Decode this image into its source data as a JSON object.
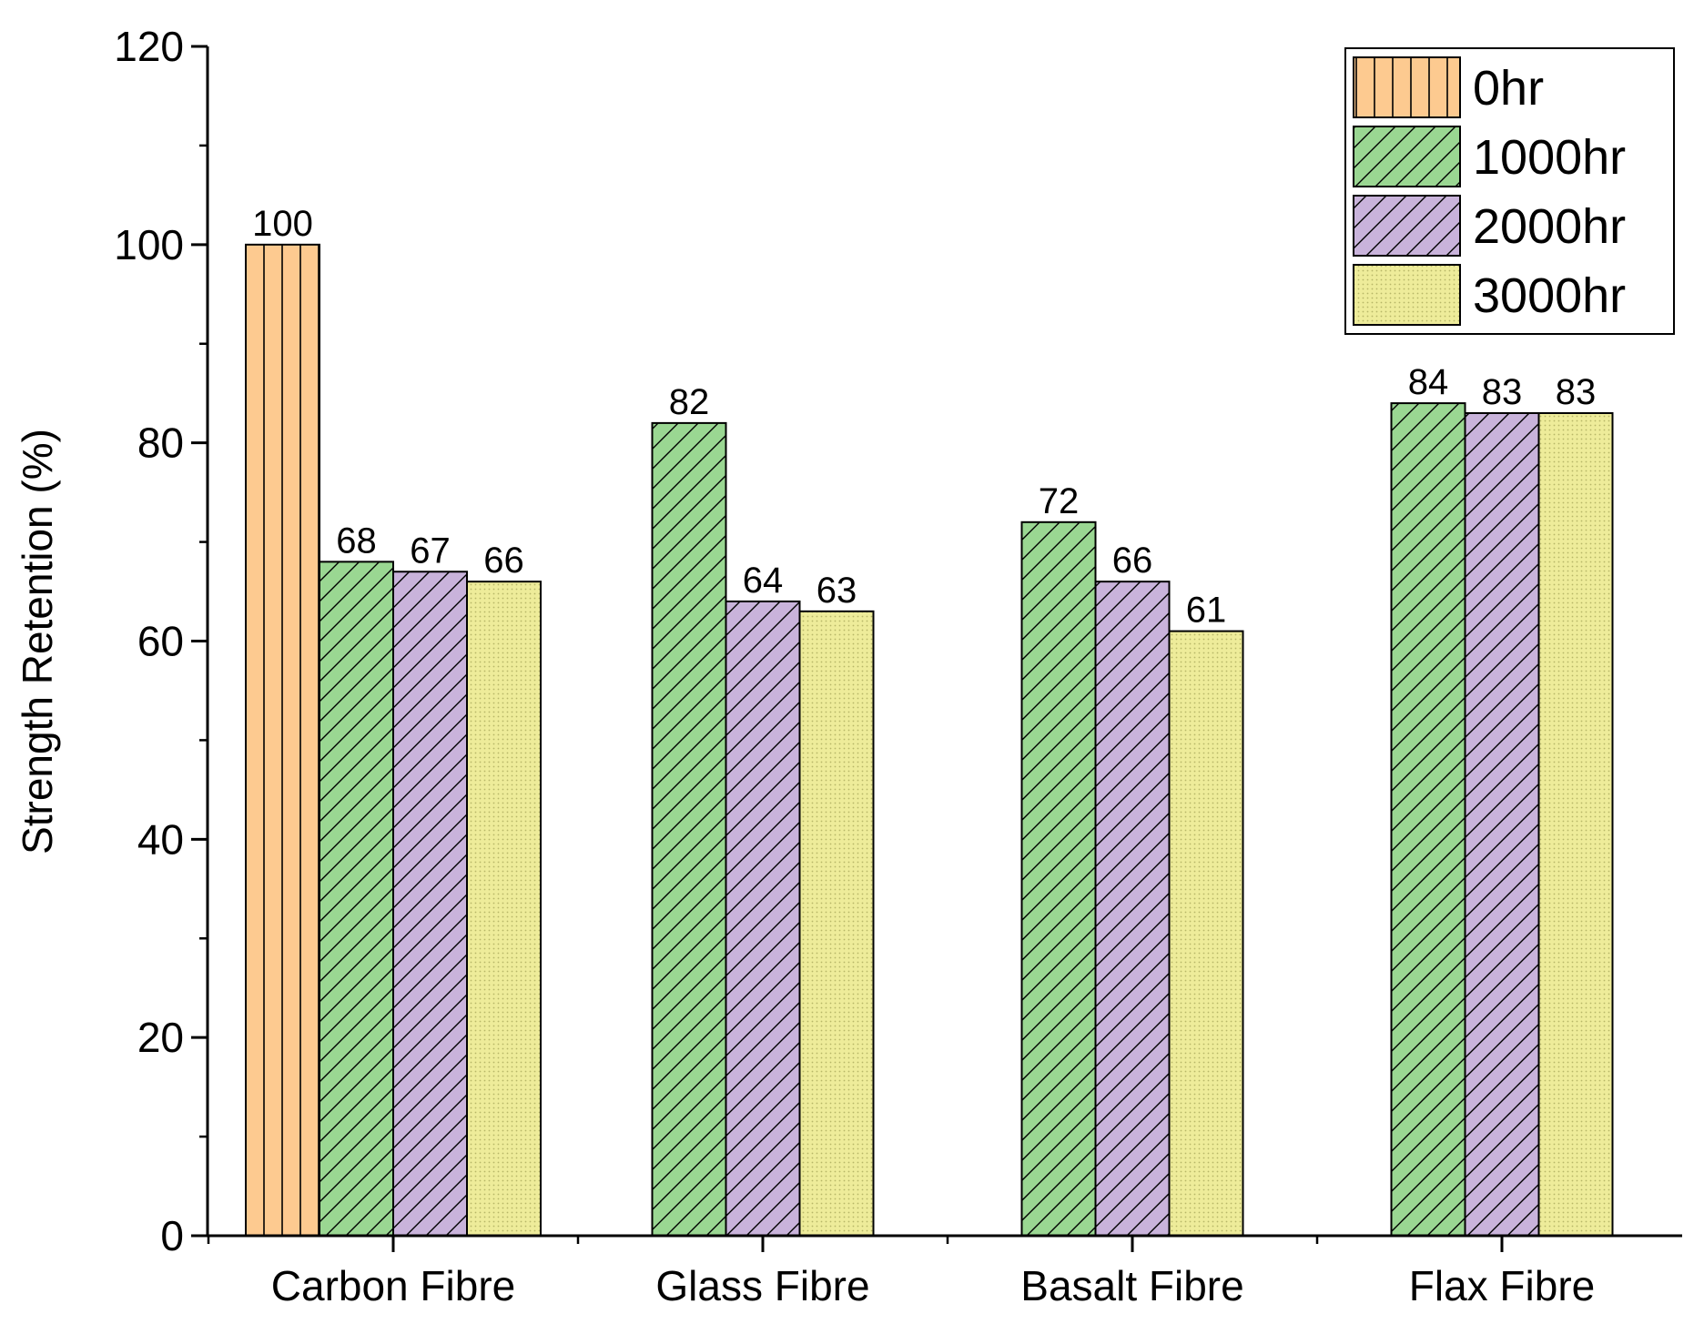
{
  "chart_data": {
    "type": "bar",
    "title": "",
    "xlabel": "",
    "ylabel": "Strength Retention (%)",
    "ylim": [
      0,
      120
    ],
    "yticks": [
      0,
      20,
      40,
      60,
      80,
      100,
      120
    ],
    "categories": [
      "Carbon Fibre",
      "Glass Fibre",
      "Basalt Fibre",
      "Flax Fibre"
    ],
    "series": [
      {
        "name": "0hr",
        "values": [
          100,
          null,
          null,
          null
        ],
        "color": "#FDCA90",
        "pattern": "vertical-lines"
      },
      {
        "name": "1000hr",
        "values": [
          68,
          82,
          72,
          84
        ],
        "color": "#9AD792",
        "pattern": "diagonal-hatch"
      },
      {
        "name": "2000hr",
        "values": [
          67,
          64,
          66,
          83
        ],
        "color": "#C9B3DB",
        "pattern": "diagonal-hatch"
      },
      {
        "name": "3000hr",
        "values": [
          66,
          63,
          61,
          83
        ],
        "color": "#EEEC9A",
        "pattern": "dots"
      }
    ],
    "bar_labels": [
      {
        "category": "Carbon Fibre",
        "series": "0hr",
        "text": "100"
      },
      {
        "category": "Carbon Fibre",
        "series": "1000hr",
        "text": "68"
      },
      {
        "category": "Carbon Fibre",
        "series": "2000hr",
        "text": "67"
      },
      {
        "category": "Carbon Fibre",
        "series": "3000hr",
        "text": "66"
      },
      {
        "category": "Glass Fibre",
        "series": "1000hr",
        "text": "82"
      },
      {
        "category": "Glass Fibre",
        "series": "2000hr",
        "text": "64"
      },
      {
        "category": "Glass Fibre",
        "series": "3000hr",
        "text": "63"
      },
      {
        "category": "Basalt Fibre",
        "series": "1000hr",
        "text": "72"
      },
      {
        "category": "Basalt Fibre",
        "series": "2000hr",
        "text": "66"
      },
      {
        "category": "Basalt Fibre",
        "series": "3000hr",
        "text": "61"
      },
      {
        "category": "Flax Fibre",
        "series": "1000hr",
        "text": "84"
      },
      {
        "category": "Flax Fibre",
        "series": "2000hr",
        "text": "83"
      },
      {
        "category": "Flax Fibre",
        "series": "3000hr",
        "text": "83"
      }
    ],
    "legend": {
      "placement": "top-right",
      "entries": [
        "0hr",
        "1000hr",
        "2000hr",
        "3000hr"
      ]
    },
    "grid": false
  }
}
